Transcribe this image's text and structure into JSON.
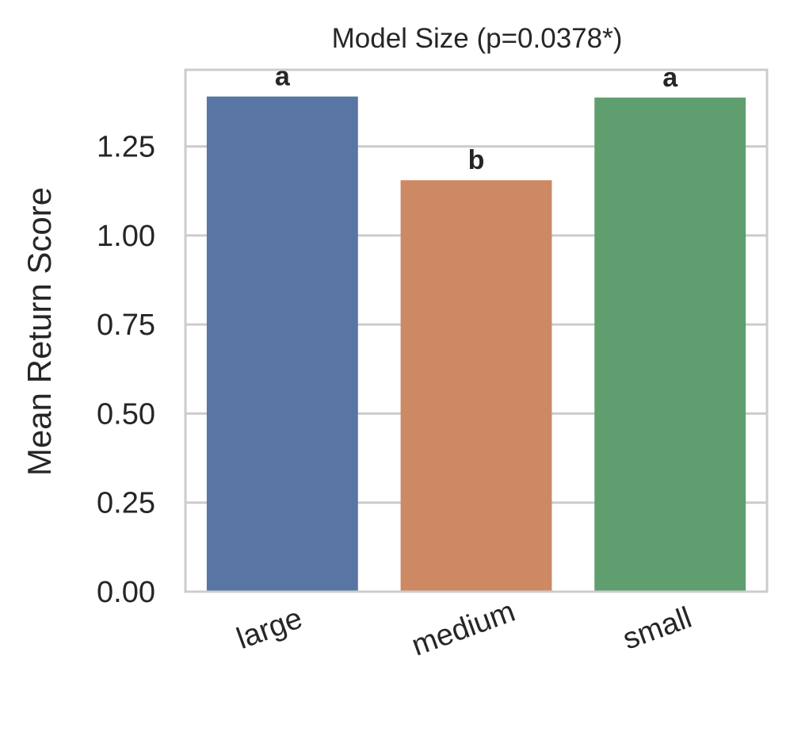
{
  "chart_data": {
    "type": "bar",
    "title": "Model Size  (p=0.0378*)",
    "xlabel": "",
    "ylabel": "Mean Return Score",
    "categories": [
      "large",
      "medium",
      "small"
    ],
    "values": [
      1.39,
      1.155,
      1.387
    ],
    "significance_letters": [
      "a",
      "b",
      "a"
    ],
    "colors": [
      "#5875a4",
      "#cc8963",
      "#5f9e6e"
    ],
    "ylim": [
      0,
      1.465
    ],
    "yticks": [
      "0.00",
      "0.25",
      "0.50",
      "0.75",
      "1.00",
      "1.25"
    ],
    "grid": true,
    "legend": "none"
  }
}
